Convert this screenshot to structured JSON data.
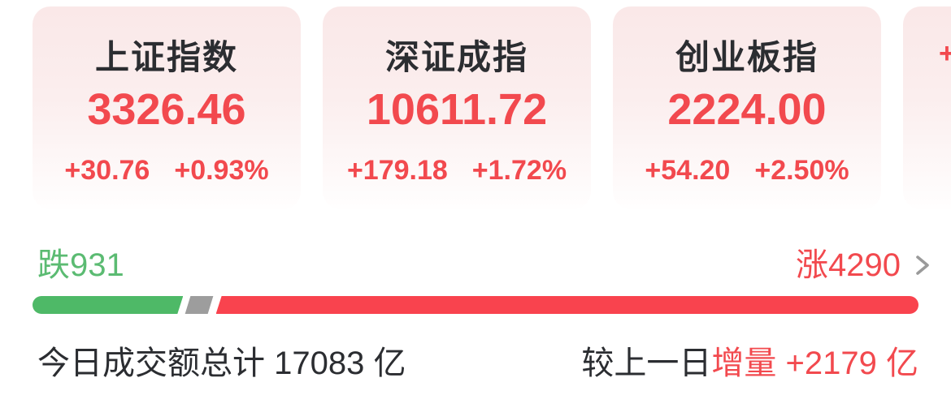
{
  "colors": {
    "accent_red": "#f2494e",
    "bar_red": "#f9434e",
    "text_green": "#5bbb72",
    "bar_green": "#4eb967",
    "bar_gray": "#9d9d9d",
    "dark_text": "#2b2d31",
    "card_gradient_top": "#fae8e8",
    "card_gradient_bottom": "#fffefe",
    "chevron_gray": "#9a9a9a"
  },
  "indices": [
    {
      "name": "上证指数",
      "value": "3326.46",
      "change": "+30.76",
      "change_pct": "+0.93%"
    },
    {
      "name": "深证成指",
      "value": "10611.72",
      "change": "+179.18",
      "change_pct": "+1.72%"
    },
    {
      "name": "创业板指",
      "value": "2224.00",
      "change": "+54.20",
      "change_pct": "+2.50%"
    },
    {
      "partial_visible_text": "+"
    }
  ],
  "breadth": {
    "down_label": "跌",
    "down_count": "931",
    "up_label": "涨",
    "up_count": "4290",
    "bar": {
      "down_pct": 17,
      "flat_pct": 2.6,
      "up_pct": 80.4
    }
  },
  "summary": {
    "turnover_text": "今日成交额总计 17083 亿",
    "comparison_prefix": "较上一日",
    "comparison_highlight": "增量 +2179 亿"
  }
}
